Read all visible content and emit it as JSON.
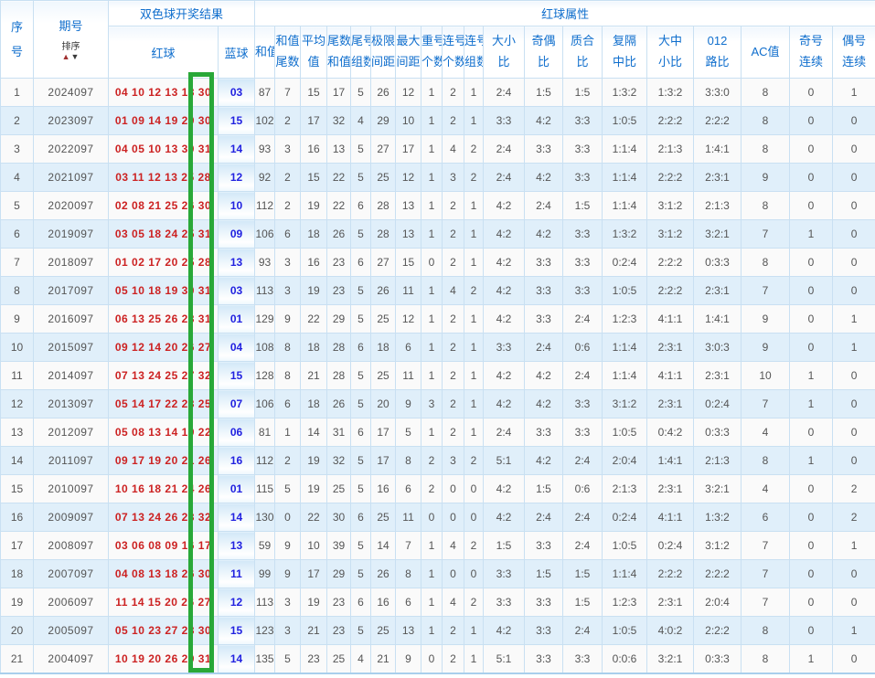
{
  "table": {
    "headers": {
      "seq_line1": "序",
      "seq_line2": "号",
      "period": "期号",
      "sort_label": "排序",
      "sort_asc_glyph": "▲",
      "sort_desc_glyph": "▼",
      "result_group": "双色球开奖结果",
      "attrs_group": "红球属性",
      "red": "红球",
      "blue": "蓝球"
    },
    "attr_columns": [
      {
        "id": "sum",
        "lines": [
          "和值"
        ]
      },
      {
        "id": "sum-tail",
        "lines": [
          "和值",
          "尾数"
        ]
      },
      {
        "id": "average",
        "lines": [
          "平均",
          "值"
        ]
      },
      {
        "id": "tail-sum",
        "lines": [
          "尾数",
          "和值"
        ]
      },
      {
        "id": "tail-groups",
        "lines": [
          "尾号",
          "组数"
        ]
      },
      {
        "id": "limit-span",
        "lines": [
          "极限",
          "间距"
        ]
      },
      {
        "id": "max-span",
        "lines": [
          "最大",
          "间距"
        ]
      },
      {
        "id": "repeat-count",
        "lines": [
          "重号",
          "个数"
        ]
      },
      {
        "id": "consecutive-count",
        "lines": [
          "连号",
          "个数"
        ]
      },
      {
        "id": "consecutive-groups",
        "lines": [
          "连号",
          "组数"
        ]
      },
      {
        "id": "big-small-ratio",
        "lines": [
          "大小",
          "比"
        ]
      },
      {
        "id": "odd-even-ratio",
        "lines": [
          "奇偶",
          "比"
        ]
      },
      {
        "id": "prime-composite-ratio",
        "lines": [
          "质合",
          "比"
        ]
      },
      {
        "id": "fu-ge-zhong-ratio",
        "lines": [
          "复隔",
          "中比"
        ]
      },
      {
        "id": "big-mid-small-ratio",
        "lines": [
          "大中",
          "小比"
        ]
      },
      {
        "id": "road-012-ratio",
        "lines": [
          "012",
          "路比"
        ]
      },
      {
        "id": "ac-value",
        "lines": [
          "AC值"
        ]
      },
      {
        "id": "odd-consecutive",
        "lines": [
          "奇号",
          "连续"
        ]
      },
      {
        "id": "even-consecutive",
        "lines": [
          "偶号",
          "连续"
        ]
      }
    ],
    "rows": [
      {
        "seq": "1",
        "period": "2024097",
        "red": "04 10 12 13 18 30",
        "blue": "03",
        "attrs": [
          "87",
          "7",
          "15",
          "17",
          "5",
          "26",
          "12",
          "1",
          "2",
          "1",
          "2:4",
          "1:5",
          "1:5",
          "1:3:2",
          "1:3:2",
          "3:3:0",
          "8",
          "0",
          "1"
        ]
      },
      {
        "seq": "2",
        "period": "2023097",
        "red": "01 09 14 19 29 30",
        "blue": "15",
        "attrs": [
          "102",
          "2",
          "17",
          "32",
          "4",
          "29",
          "10",
          "1",
          "2",
          "1",
          "3:3",
          "4:2",
          "3:3",
          "1:0:5",
          "2:2:2",
          "2:2:2",
          "8",
          "0",
          "0"
        ]
      },
      {
        "seq": "3",
        "period": "2022097",
        "red": "04 05 10 13 30 31",
        "blue": "14",
        "attrs": [
          "93",
          "3",
          "16",
          "13",
          "5",
          "27",
          "17",
          "1",
          "4",
          "2",
          "2:4",
          "3:3",
          "3:3",
          "1:1:4",
          "2:1:3",
          "1:4:1",
          "8",
          "0",
          "0"
        ]
      },
      {
        "seq": "4",
        "period": "2021097",
        "red": "03 11 12 13 25 28",
        "blue": "12",
        "attrs": [
          "92",
          "2",
          "15",
          "22",
          "5",
          "25",
          "12",
          "1",
          "3",
          "2",
          "2:4",
          "4:2",
          "3:3",
          "1:1:4",
          "2:2:2",
          "2:3:1",
          "9",
          "0",
          "0"
        ]
      },
      {
        "seq": "5",
        "period": "2020097",
        "red": "02 08 21 25 26 30",
        "blue": "10",
        "attrs": [
          "112",
          "2",
          "19",
          "22",
          "6",
          "28",
          "13",
          "1",
          "2",
          "1",
          "4:2",
          "2:4",
          "1:5",
          "1:1:4",
          "3:1:2",
          "2:1:3",
          "8",
          "0",
          "0"
        ]
      },
      {
        "seq": "6",
        "period": "2019097",
        "red": "03 05 18 24 25 31",
        "blue": "09",
        "attrs": [
          "106",
          "6",
          "18",
          "26",
          "5",
          "28",
          "13",
          "1",
          "2",
          "1",
          "4:2",
          "4:2",
          "3:3",
          "1:3:2",
          "3:1:2",
          "3:2:1",
          "7",
          "1",
          "0"
        ]
      },
      {
        "seq": "7",
        "period": "2018097",
        "red": "01 02 17 20 25 28",
        "blue": "13",
        "attrs": [
          "93",
          "3",
          "16",
          "23",
          "6",
          "27",
          "15",
          "0",
          "2",
          "1",
          "4:2",
          "3:3",
          "3:3",
          "0:2:4",
          "2:2:2",
          "0:3:3",
          "8",
          "0",
          "0"
        ]
      },
      {
        "seq": "8",
        "period": "2017097",
        "red": "05 10 18 19 30 31",
        "blue": "03",
        "attrs": [
          "113",
          "3",
          "19",
          "23",
          "5",
          "26",
          "11",
          "1",
          "4",
          "2",
          "4:2",
          "3:3",
          "3:3",
          "1:0:5",
          "2:2:2",
          "2:3:1",
          "7",
          "0",
          "0"
        ]
      },
      {
        "seq": "9",
        "period": "2016097",
        "red": "06 13 25 26 28 31",
        "blue": "01",
        "attrs": [
          "129",
          "9",
          "22",
          "29",
          "5",
          "25",
          "12",
          "1",
          "2",
          "1",
          "4:2",
          "3:3",
          "2:4",
          "1:2:3",
          "4:1:1",
          "1:4:1",
          "9",
          "0",
          "1"
        ]
      },
      {
        "seq": "10",
        "period": "2015097",
        "red": "09 12 14 20 26 27",
        "blue": "04",
        "attrs": [
          "108",
          "8",
          "18",
          "28",
          "6",
          "18",
          "6",
          "1",
          "2",
          "1",
          "3:3",
          "2:4",
          "0:6",
          "1:1:4",
          "2:3:1",
          "3:0:3",
          "9",
          "0",
          "1"
        ]
      },
      {
        "seq": "11",
        "period": "2014097",
        "red": "07 13 24 25 27 32",
        "blue": "15",
        "attrs": [
          "128",
          "8",
          "21",
          "28",
          "5",
          "25",
          "11",
          "1",
          "2",
          "1",
          "4:2",
          "4:2",
          "2:4",
          "1:1:4",
          "4:1:1",
          "2:3:1",
          "10",
          "1",
          "0"
        ]
      },
      {
        "seq": "12",
        "period": "2013097",
        "red": "05 14 17 22 23 25",
        "blue": "07",
        "attrs": [
          "106",
          "6",
          "18",
          "26",
          "5",
          "20",
          "9",
          "3",
          "2",
          "1",
          "4:2",
          "4:2",
          "3:3",
          "3:1:2",
          "2:3:1",
          "0:2:4",
          "7",
          "1",
          "0"
        ]
      },
      {
        "seq": "13",
        "period": "2012097",
        "red": "05 08 13 14 19 22",
        "blue": "06",
        "attrs": [
          "81",
          "1",
          "14",
          "31",
          "6",
          "17",
          "5",
          "1",
          "2",
          "1",
          "2:4",
          "3:3",
          "3:3",
          "1:0:5",
          "0:4:2",
          "0:3:3",
          "4",
          "0",
          "0"
        ]
      },
      {
        "seq": "14",
        "period": "2011097",
        "red": "09 17 19 20 21 26",
        "blue": "16",
        "attrs": [
          "112",
          "2",
          "19",
          "32",
          "5",
          "17",
          "8",
          "2",
          "3",
          "2",
          "5:1",
          "4:2",
          "2:4",
          "2:0:4",
          "1:4:1",
          "2:1:3",
          "8",
          "1",
          "0"
        ]
      },
      {
        "seq": "15",
        "period": "2010097",
        "red": "10 16 18 21 24 26",
        "blue": "01",
        "attrs": [
          "115",
          "5",
          "19",
          "25",
          "5",
          "16",
          "6",
          "2",
          "0",
          "0",
          "4:2",
          "1:5",
          "0:6",
          "2:1:3",
          "2:3:1",
          "3:2:1",
          "4",
          "0",
          "2"
        ]
      },
      {
        "seq": "16",
        "period": "2009097",
        "red": "07 13 24 26 28 32",
        "blue": "14",
        "attrs": [
          "130",
          "0",
          "22",
          "30",
          "6",
          "25",
          "11",
          "0",
          "0",
          "0",
          "4:2",
          "2:4",
          "2:4",
          "0:2:4",
          "4:1:1",
          "1:3:2",
          "6",
          "0",
          "2"
        ]
      },
      {
        "seq": "17",
        "period": "2008097",
        "red": "03 06 08 09 16 17",
        "blue": "13",
        "attrs": [
          "59",
          "9",
          "10",
          "39",
          "5",
          "14",
          "7",
          "1",
          "4",
          "2",
          "1:5",
          "3:3",
          "2:4",
          "1:0:5",
          "0:2:4",
          "3:1:2",
          "7",
          "0",
          "1"
        ]
      },
      {
        "seq": "18",
        "period": "2007097",
        "red": "04 08 13 18 26 30",
        "blue": "11",
        "attrs": [
          "99",
          "9",
          "17",
          "29",
          "5",
          "26",
          "8",
          "1",
          "0",
          "0",
          "3:3",
          "1:5",
          "1:5",
          "1:1:4",
          "2:2:2",
          "2:2:2",
          "7",
          "0",
          "0"
        ]
      },
      {
        "seq": "19",
        "period": "2006097",
        "red": "11 14 15 20 26 27",
        "blue": "12",
        "attrs": [
          "113",
          "3",
          "19",
          "23",
          "6",
          "16",
          "6",
          "1",
          "4",
          "2",
          "3:3",
          "3:3",
          "1:5",
          "1:2:3",
          "2:3:1",
          "2:0:4",
          "7",
          "0",
          "0"
        ]
      },
      {
        "seq": "20",
        "period": "2005097",
        "red": "05 10 23 27 28 30",
        "blue": "15",
        "attrs": [
          "123",
          "3",
          "21",
          "23",
          "5",
          "25",
          "13",
          "1",
          "2",
          "1",
          "4:2",
          "3:3",
          "2:4",
          "1:0:5",
          "4:0:2",
          "2:2:2",
          "8",
          "0",
          "1"
        ]
      },
      {
        "seq": "21",
        "period": "2004097",
        "red": "10 19 20 26 29 31",
        "blue": "14",
        "attrs": [
          "135",
          "5",
          "23",
          "25",
          "4",
          "21",
          "9",
          "0",
          "2",
          "1",
          "5:1",
          "3:3",
          "3:3",
          "0:0:6",
          "3:2:1",
          "0:3:3",
          "8",
          "1",
          "0"
        ]
      }
    ]
  },
  "highlight_box": {
    "target": "red-ball-6-column",
    "color": "#29a838"
  },
  "colors": {
    "header_text": "#0f6ecd",
    "red_ball_text": "#cc2222",
    "blue_ball_text": "#2222e0",
    "row_alt_background": "#e0effa",
    "grid_border": "#c9e0f2",
    "sort_asc_arrow": "#a03030",
    "sort_desc_arrow": "#3a3a3a"
  }
}
